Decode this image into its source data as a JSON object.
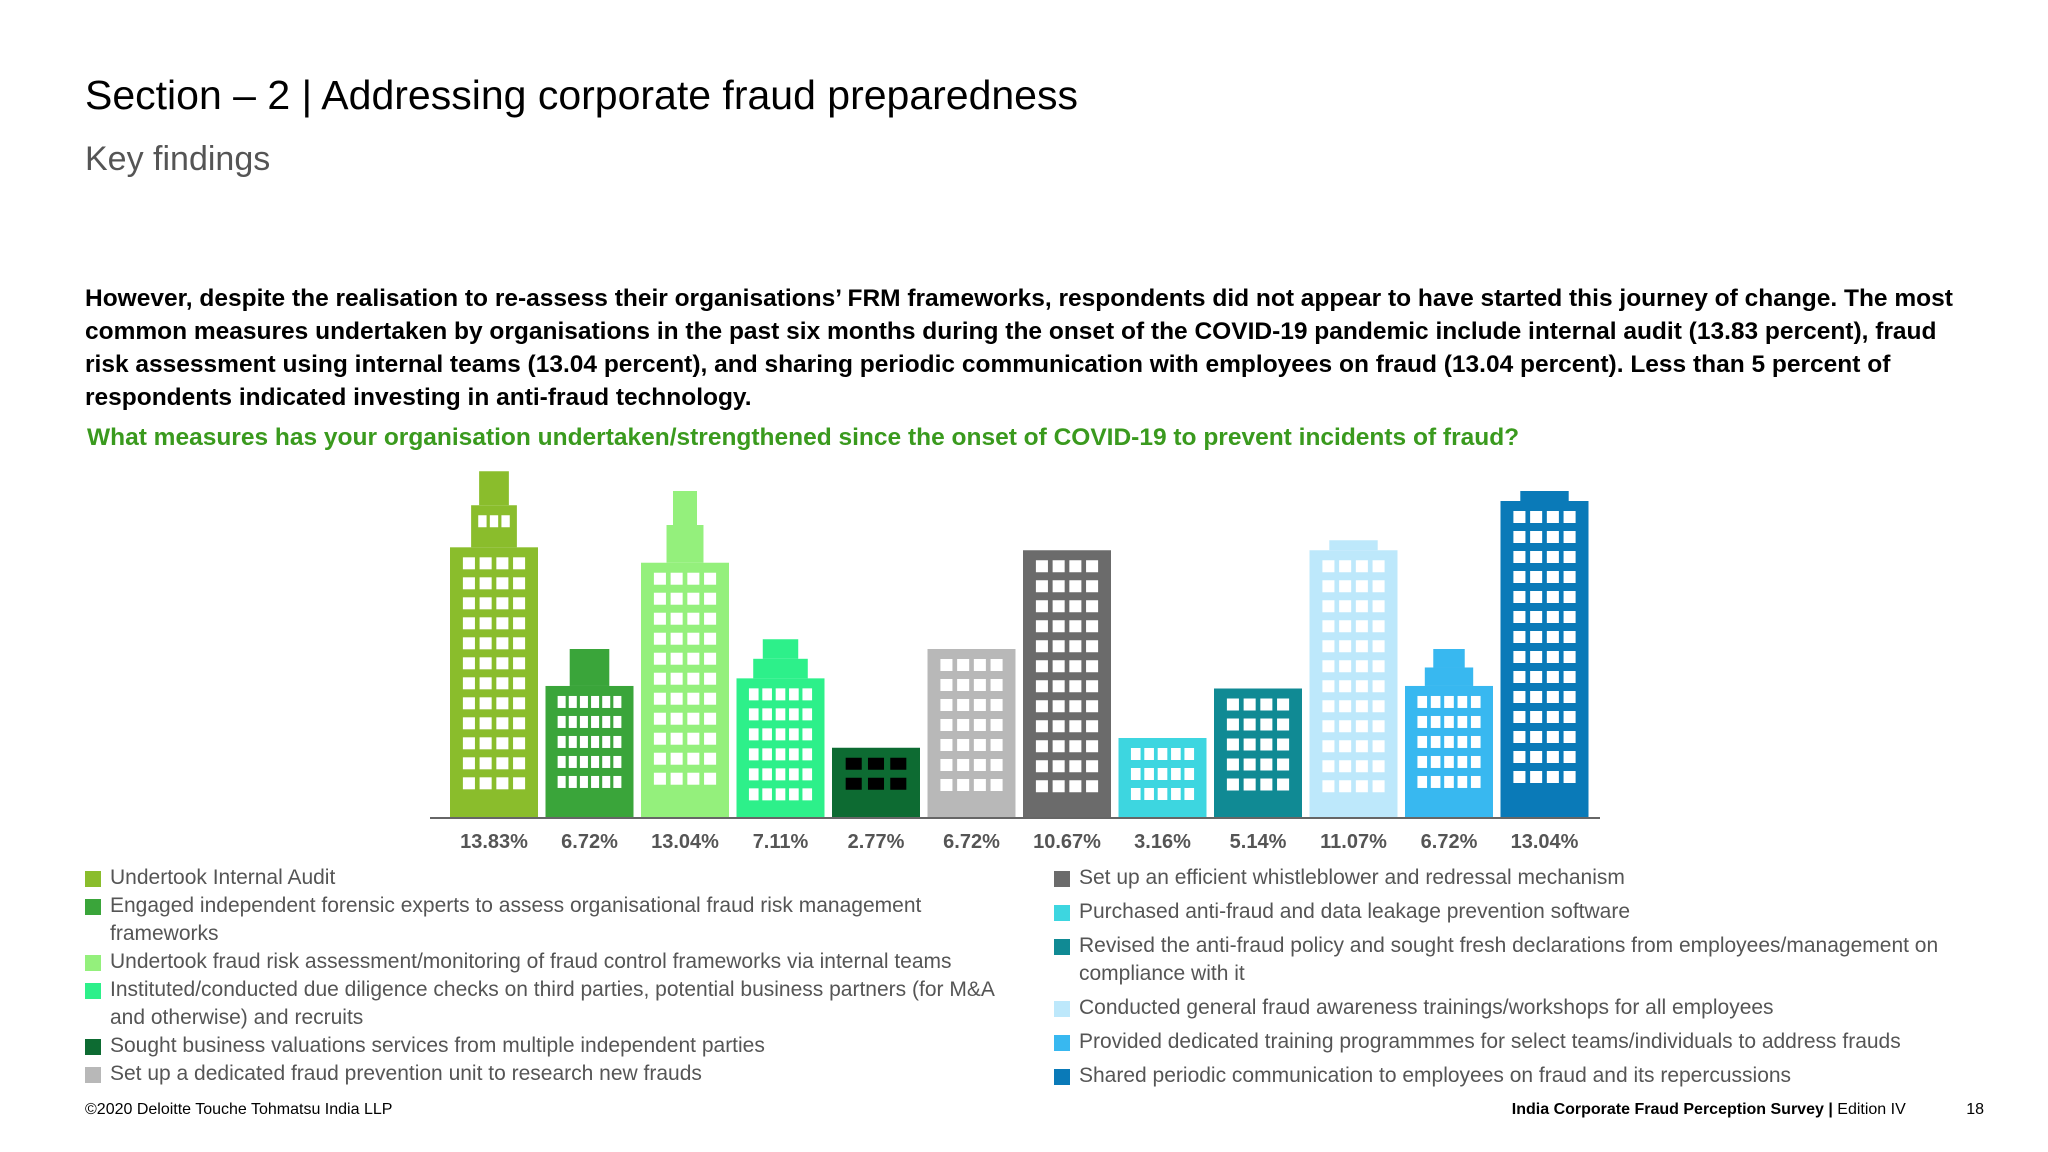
{
  "header": {
    "title": "Section – 2  |  Addressing corporate fraud preparedness",
    "subtitle": "Key findings"
  },
  "body": {
    "paragraph": "However, despite the realisation to re-assess their organisations’ FRM frameworks, respondents did not appear to have started this journey of change. The most common measures undertaken by organisations in the past six months during the onset of the COVID-19 pandemic include internal audit (13.83 percent), fraud risk assessment using internal teams (13.04 percent), and sharing periodic communication with employees on fraud (13.04 percent). Less than 5 percent of respondents indicated investing in anti-fraud technology.",
    "question": "What measures has your organisation undertaken/strengthened since the onset of COVID-19 to prevent incidents of fraud?"
  },
  "chart_data": {
    "type": "bar",
    "title": "",
    "xlabel": "",
    "ylabel": "",
    "grid": false,
    "legend_placement": "bottom",
    "categories": [
      "Undertook Internal Audit",
      "Engaged independent forensic experts to assess organisational fraud risk management frameworks",
      "Undertook fraud risk assessment/monitoring of fraud control frameworks via internal teams",
      "Instituted/conducted due diligence checks on third parties, potential business partners (for M&A and otherwise) and recruits",
      "Sought business valuations services from multiple independent parties",
      "Set up a dedicated fraud prevention unit to research new frauds",
      "Set up an efficient whistleblower and redressal mechanism",
      "Purchased anti-fraud and data leakage prevention software",
      "Revised the anti-fraud policy and sought fresh declarations from employees/management on compliance with it",
      "Conducted general fraud awareness trainings/workshops for all employees",
      "Provided dedicated training programmmes for select teams/individuals to address frauds",
      "Shared periodic communication to employees on fraud and its repercussions"
    ],
    "values": [
      13.83,
      6.72,
      13.04,
      7.11,
      2.77,
      6.72,
      10.67,
      3.16,
      5.14,
      11.07,
      6.72,
      13.04
    ],
    "value_labels": [
      "13.83%",
      "6.72%",
      "13.04%",
      "7.11%",
      "2.77%",
      "6.72%",
      "10.67%",
      "3.16%",
      "5.14%",
      "11.07%",
      "6.72%",
      "13.04%"
    ],
    "colors": [
      "#8abd2c",
      "#3aa53a",
      "#94f07c",
      "#2df08a",
      "#0d6b32",
      "#b8b8b8",
      "#6b6b6b",
      "#3dd6e0",
      "#108a94",
      "#bde8fb",
      "#38b8f0",
      "#0a7ab8"
    ],
    "ylim": [
      0,
      14
    ]
  },
  "legend": {
    "left": [
      0,
      1,
      2,
      3,
      4,
      5
    ],
    "right": [
      6,
      7,
      8,
      9,
      10,
      11
    ]
  },
  "footer": {
    "copyright": "©2020 Deloitte Touche Tohmatsu India LLP",
    "survey": "India Corporate Fraud Perception Survey",
    "separator": "|",
    "edition": "Edition IV",
    "page": "18"
  }
}
